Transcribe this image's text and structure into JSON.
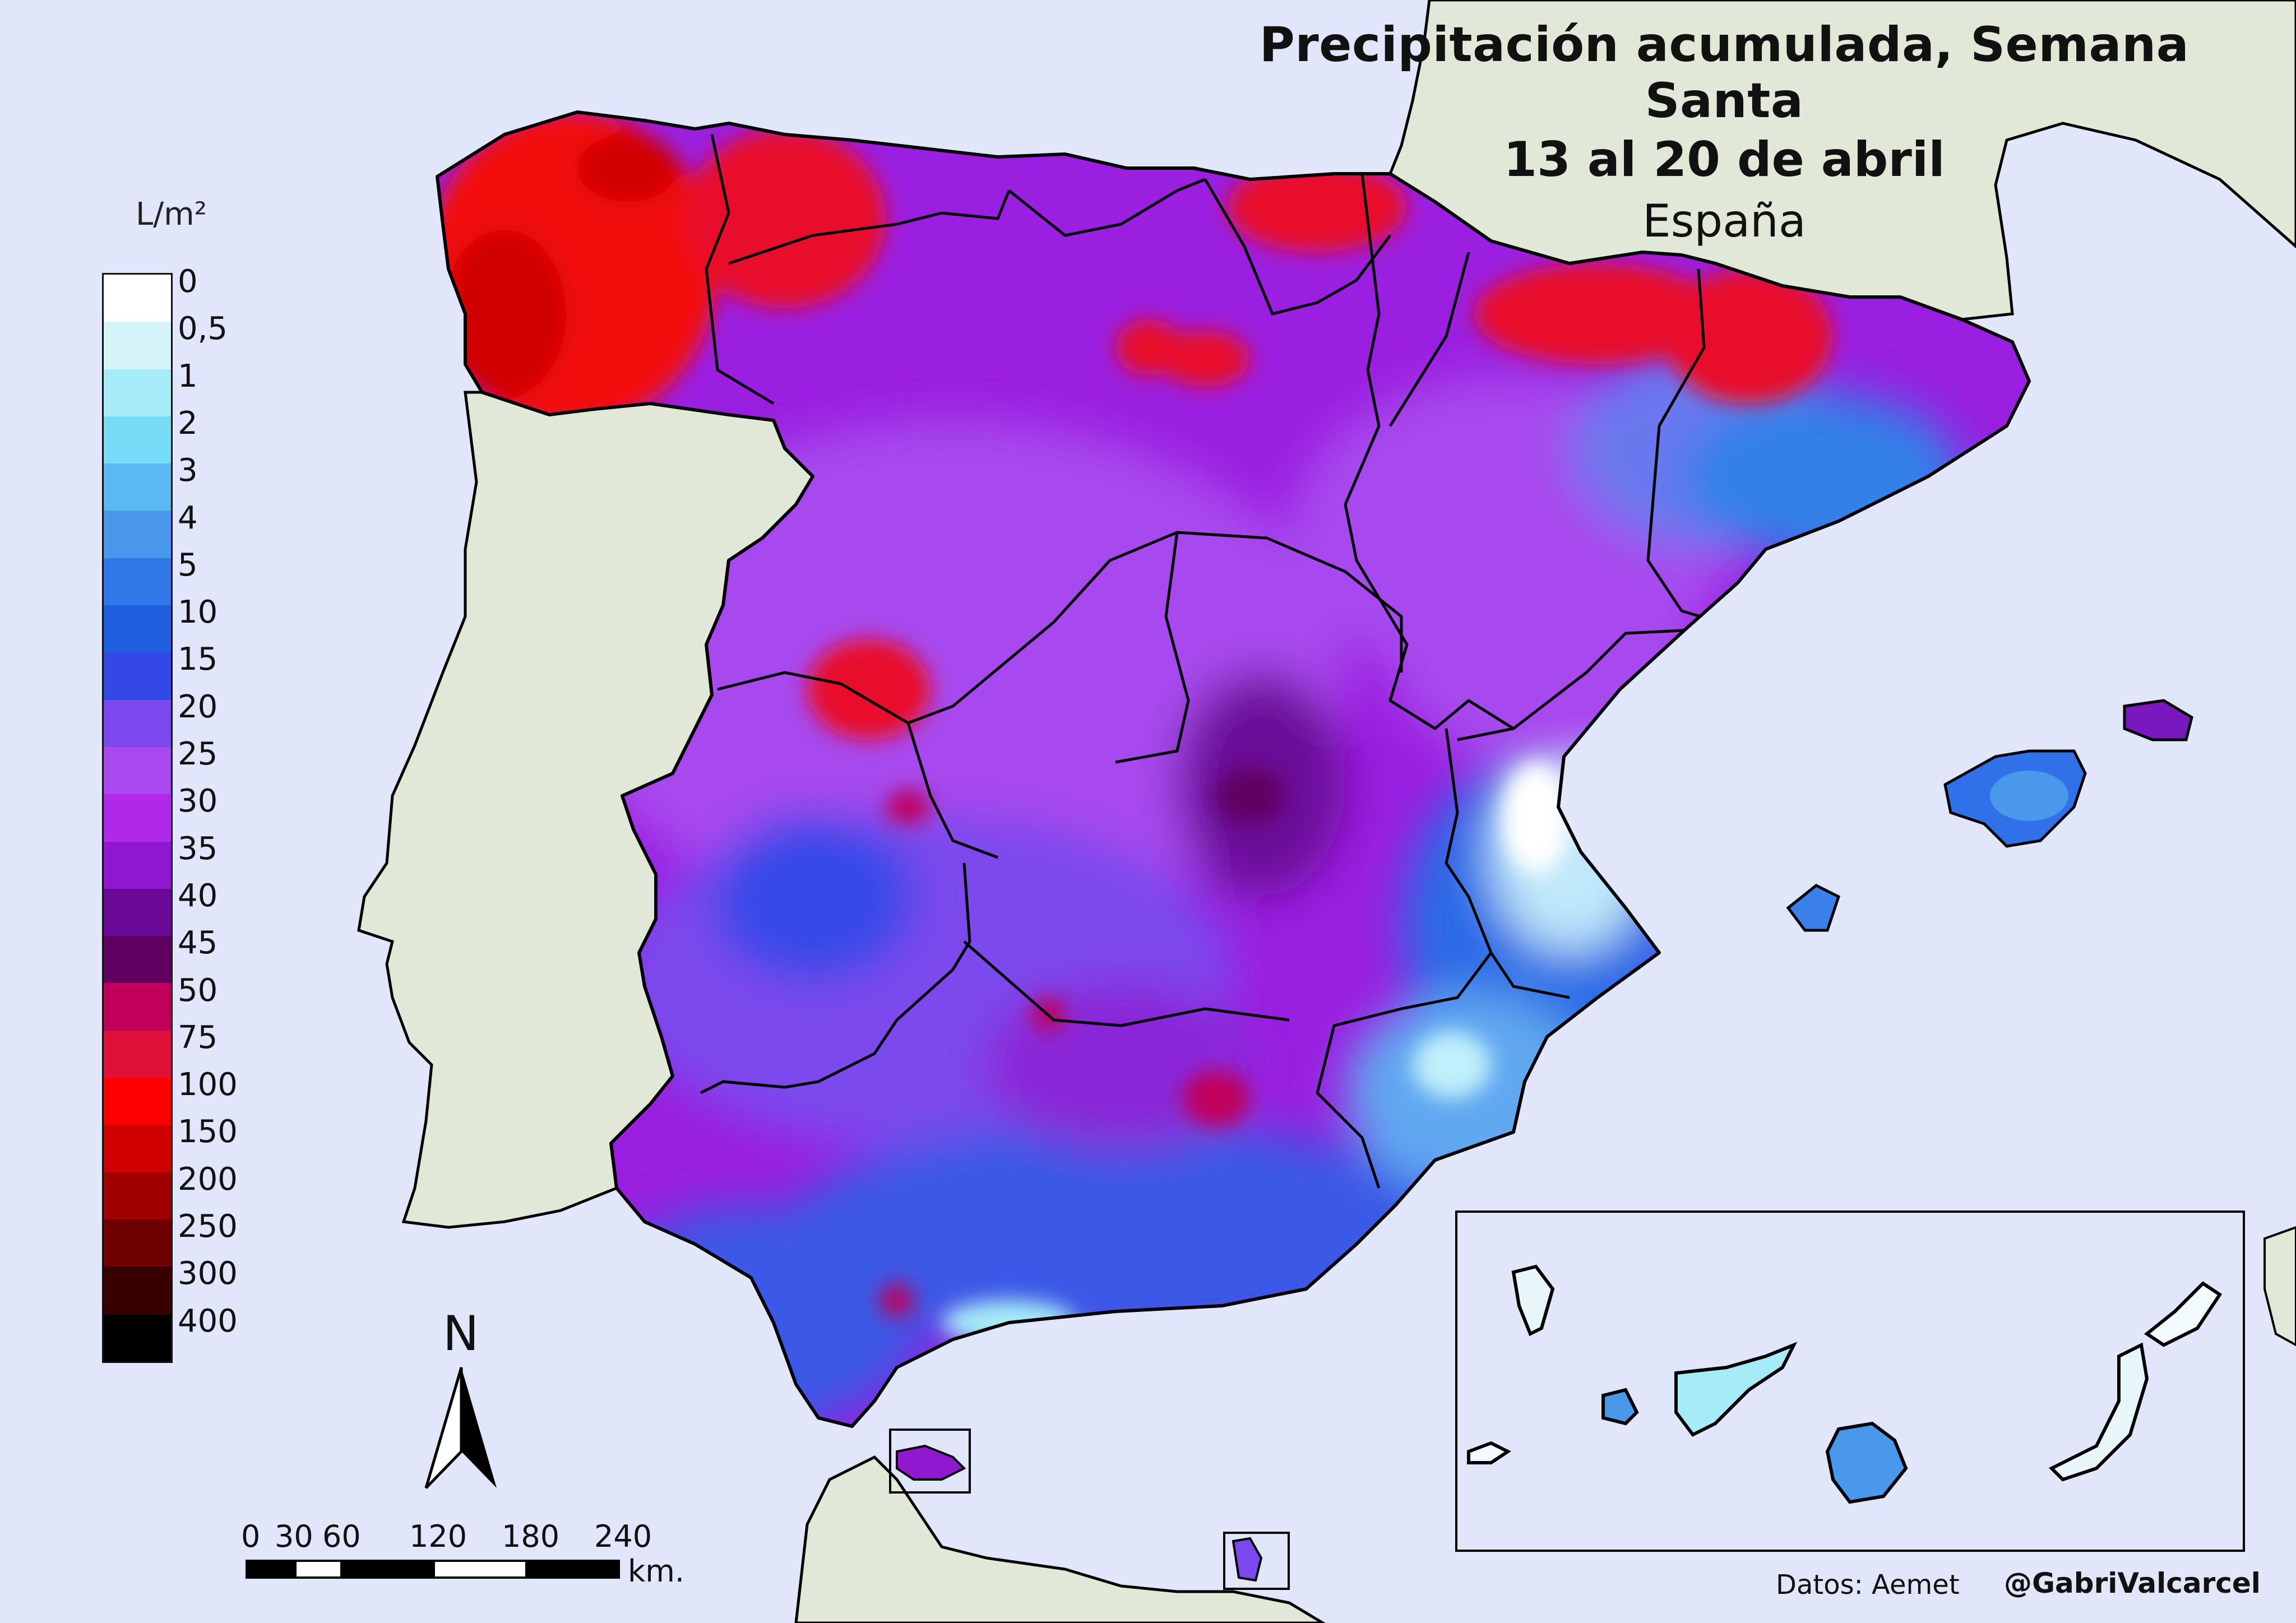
{
  "title": {
    "line1": "Precipitación acumulada, Semana Santa",
    "line2": "13 al 20 de abril",
    "line3": "España"
  },
  "legend": {
    "unit": "L/m²",
    "labels": [
      "0",
      "0,5",
      "1",
      "2",
      "3",
      "4",
      "5",
      "10",
      "15",
      "20",
      "25",
      "30",
      "35",
      "40",
      "45",
      "50",
      "75",
      "100",
      "150",
      "200",
      "250",
      "300",
      "400"
    ],
    "colors": [
      "#ffffff",
      "#d4f4fa",
      "#a6ecf8",
      "#76dcf8",
      "#5ab8f2",
      "#4a98ec",
      "#3078e8",
      "#2060e0",
      "#3448e8",
      "#7a48ec",
      "#a848ee",
      "#b028e8",
      "#9018d0",
      "#6a0898",
      "#600060",
      "#c0005a",
      "#e0103a",
      "#ff0000",
      "#d00000",
      "#a00000",
      "#700000",
      "#380000",
      "#000000"
    ]
  },
  "north_label": "N",
  "scale": {
    "labels": [
      "0",
      "30",
      "60",
      "120",
      "180",
      "240"
    ],
    "unit": "km."
  },
  "credits": {
    "source": "Datos: Aemet",
    "author": "@GabriValcarcel"
  },
  "map_colors": {
    "sea": "#e1e6fb",
    "land": "#e2e8d8",
    "border": "#000000"
  }
}
